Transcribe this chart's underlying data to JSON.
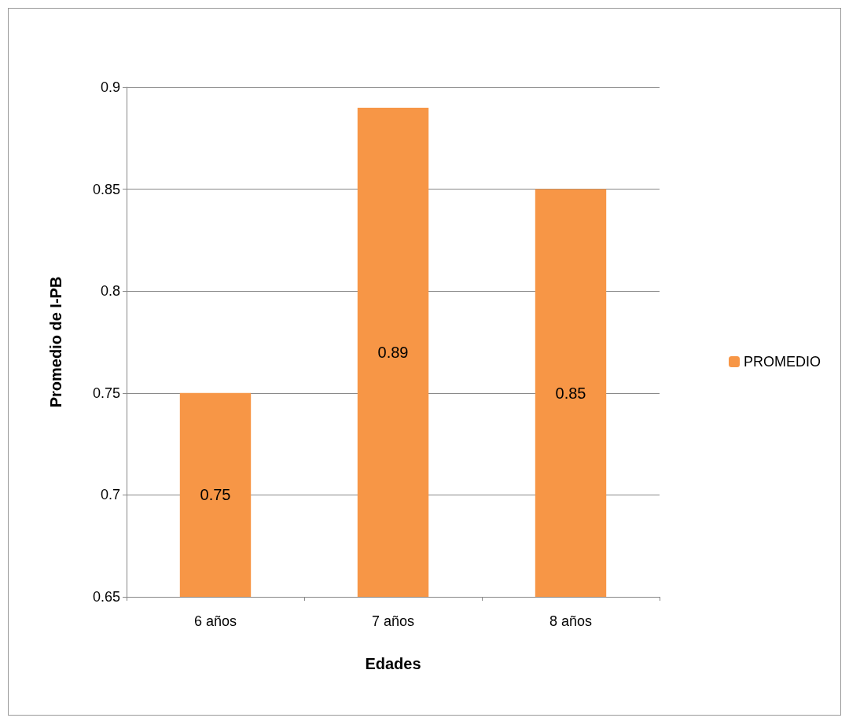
{
  "chart_data": {
    "type": "bar",
    "xlabel": "Edades",
    "ylabel": "Promedio de I-PB",
    "categories": [
      "6 años",
      "7 años",
      "8 años"
    ],
    "series": [
      {
        "name": "PROMEDIO",
        "color": "#f79646",
        "values": [
          0.75,
          0.89,
          0.85
        ]
      }
    ],
    "ylim": [
      0.65,
      0.9
    ],
    "yticks": [
      0.65,
      0.7,
      0.75,
      0.8,
      0.85,
      0.9
    ],
    "grid": "y",
    "legend": "right",
    "data_labels": true
  }
}
